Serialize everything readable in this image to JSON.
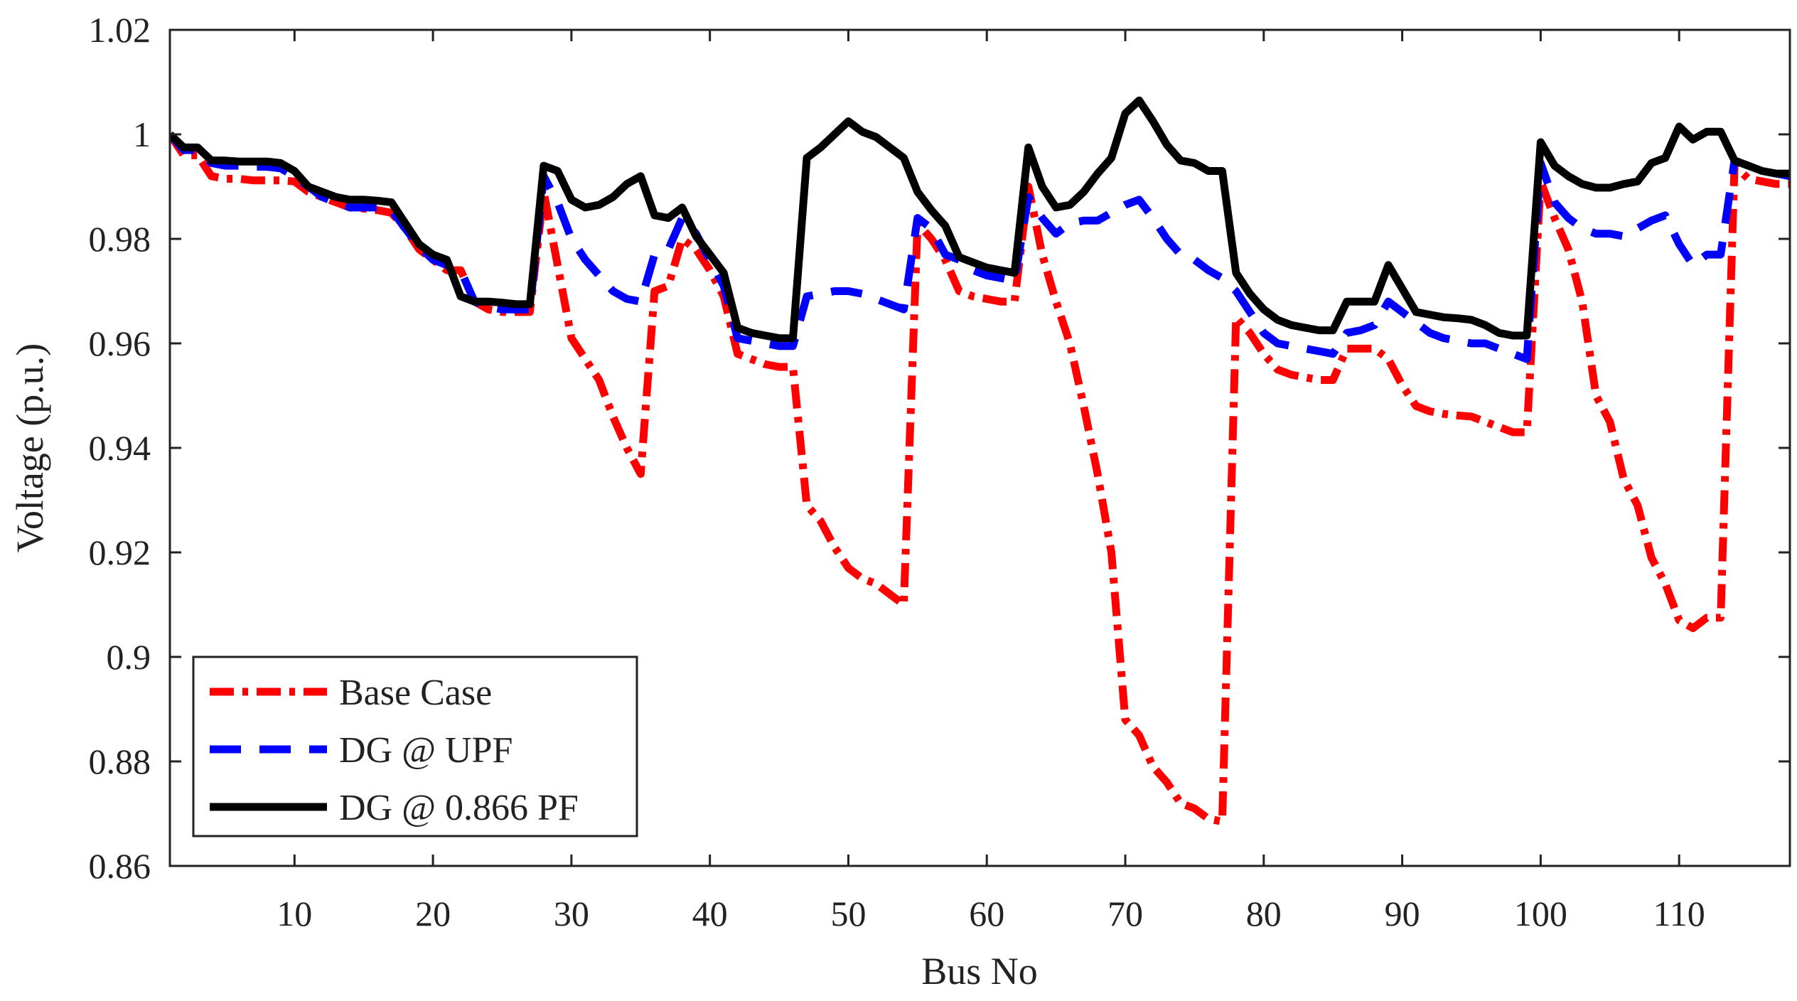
{
  "chart_data": {
    "type": "line",
    "title": "",
    "xlabel": "Bus No",
    "ylabel": "Voltage (p.u.)",
    "xlim": [
      1,
      118
    ],
    "ylim": [
      0.86,
      1.02
    ],
    "xticks": [
      10,
      20,
      30,
      40,
      50,
      60,
      70,
      80,
      90,
      100,
      110
    ],
    "yticks": [
      0.86,
      0.88,
      0.9,
      0.92,
      0.94,
      0.96,
      0.98,
      1,
      1.02
    ],
    "ytick_labels": [
      "0.86",
      "0.88",
      "0.9",
      "0.92",
      "0.94",
      "0.96",
      "0.98",
      "1",
      "1.02"
    ],
    "legend_position": "bottom-left",
    "grid": false,
    "series": [
      {
        "name": "Base Case",
        "color": "#ff0000",
        "style": "dash-dot",
        "x": [
          1,
          2,
          3,
          4,
          5,
          6,
          7,
          8,
          9,
          10,
          11,
          12,
          13,
          14,
          15,
          16,
          17,
          18,
          19,
          20,
          21,
          22,
          23,
          24,
          25,
          26,
          27,
          28,
          29,
          30,
          31,
          32,
          33,
          34,
          35,
          36,
          37,
          38,
          39,
          40,
          41,
          42,
          43,
          44,
          45,
          46,
          47,
          48,
          49,
          50,
          51,
          52,
          53,
          54,
          55,
          56,
          57,
          58,
          59,
          60,
          61,
          62,
          63,
          64,
          65,
          66,
          67,
          68,
          69,
          70,
          71,
          72,
          73,
          74,
          75,
          76,
          77,
          78,
          79,
          80,
          81,
          82,
          83,
          84,
          85,
          86,
          87,
          88,
          89,
          90,
          91,
          92,
          93,
          94,
          95,
          96,
          97,
          98,
          99,
          100,
          101,
          102,
          103,
          104,
          105,
          106,
          107,
          108,
          109,
          110,
          111,
          112,
          113,
          114,
          115,
          116,
          117,
          118
        ],
        "values": [
          1.0,
          0.996,
          0.996,
          0.992,
          0.9915,
          0.9915,
          0.9912,
          0.9912,
          0.9912,
          0.991,
          0.989,
          0.988,
          0.987,
          0.986,
          0.9858,
          0.9855,
          0.985,
          0.982,
          0.978,
          0.976,
          0.974,
          0.974,
          0.968,
          0.9665,
          0.966,
          0.966,
          0.966,
          0.989,
          0.975,
          0.961,
          0.957,
          0.953,
          0.946,
          0.94,
          0.935,
          0.97,
          0.971,
          0.98,
          0.978,
          0.974,
          0.969,
          0.958,
          0.957,
          0.956,
          0.9555,
          0.9555,
          0.929,
          0.926,
          0.921,
          0.917,
          0.915,
          0.914,
          0.912,
          0.91,
          0.983,
          0.98,
          0.976,
          0.97,
          0.969,
          0.9685,
          0.968,
          0.968,
          0.99,
          0.977,
          0.968,
          0.96,
          0.948,
          0.935,
          0.92,
          0.888,
          0.885,
          0.879,
          0.876,
          0.872,
          0.871,
          0.869,
          0.8685,
          0.965,
          0.962,
          0.958,
          0.955,
          0.954,
          0.9535,
          0.953,
          0.953,
          0.959,
          0.959,
          0.959,
          0.957,
          0.952,
          0.948,
          0.947,
          0.9465,
          0.9462,
          0.946,
          0.945,
          0.944,
          0.943,
          0.943,
          0.991,
          0.984,
          0.978,
          0.968,
          0.95,
          0.945,
          0.934,
          0.929,
          0.919,
          0.914,
          0.907,
          0.9055,
          0.9075,
          0.9075,
          0.994,
          0.9915,
          0.991,
          0.9905,
          0.9905
        ]
      },
      {
        "name": "DG @ UPF",
        "color": "#0000ff",
        "style": "dashed",
        "x": [
          1,
          2,
          3,
          4,
          5,
          6,
          7,
          8,
          9,
          10,
          11,
          12,
          13,
          14,
          15,
          16,
          17,
          18,
          19,
          20,
          21,
          22,
          23,
          24,
          25,
          26,
          27,
          28,
          29,
          30,
          31,
          32,
          33,
          34,
          35,
          36,
          37,
          38,
          39,
          40,
          41,
          42,
          43,
          44,
          45,
          46,
          47,
          48,
          49,
          50,
          51,
          52,
          53,
          54,
          55,
          56,
          57,
          58,
          59,
          60,
          61,
          62,
          63,
          64,
          65,
          66,
          67,
          68,
          69,
          70,
          71,
          72,
          73,
          74,
          75,
          76,
          77,
          78,
          79,
          80,
          81,
          82,
          83,
          84,
          85,
          86,
          87,
          88,
          89,
          90,
          91,
          92,
          93,
          94,
          95,
          96,
          97,
          98,
          99,
          100,
          101,
          102,
          103,
          104,
          105,
          106,
          107,
          108,
          109,
          110,
          111,
          112,
          113,
          114,
          115,
          116,
          117,
          118
        ],
        "values": [
          1.0,
          0.997,
          0.997,
          0.9945,
          0.994,
          0.994,
          0.9938,
          0.9938,
          0.9935,
          0.992,
          0.99,
          0.988,
          0.987,
          0.986,
          0.986,
          0.986,
          0.9855,
          0.982,
          0.9785,
          0.976,
          0.975,
          0.974,
          0.968,
          0.967,
          0.9665,
          0.9665,
          0.9665,
          0.992,
          0.987,
          0.98,
          0.976,
          0.973,
          0.97,
          0.9685,
          0.968,
          0.977,
          0.978,
          0.984,
          0.981,
          0.976,
          0.971,
          0.961,
          0.9605,
          0.96,
          0.9595,
          0.9595,
          0.969,
          0.9695,
          0.97,
          0.97,
          0.9695,
          0.9685,
          0.9675,
          0.9665,
          0.984,
          0.982,
          0.977,
          0.976,
          0.974,
          0.973,
          0.9725,
          0.972,
          0.988,
          0.984,
          0.981,
          0.983,
          0.9835,
          0.9835,
          0.985,
          0.9865,
          0.9875,
          0.984,
          0.98,
          0.977,
          0.976,
          0.974,
          0.9725,
          0.97,
          0.966,
          0.962,
          0.96,
          0.9595,
          0.959,
          0.9585,
          0.958,
          0.962,
          0.9625,
          0.9635,
          0.968,
          0.966,
          0.964,
          0.962,
          0.961,
          0.9605,
          0.96,
          0.96,
          0.959,
          0.958,
          0.957,
          0.9945,
          0.987,
          0.984,
          0.982,
          0.981,
          0.981,
          0.9805,
          0.982,
          0.9835,
          0.9845,
          0.979,
          0.975,
          0.977,
          0.977,
          0.995,
          0.994,
          0.993,
          0.9925,
          0.992
        ]
      },
      {
        "name": "DG @ 0.866 PF",
        "color": "#000000",
        "style": "solid",
        "x": [
          1,
          2,
          3,
          4,
          5,
          6,
          7,
          8,
          9,
          10,
          11,
          12,
          13,
          14,
          15,
          16,
          17,
          18,
          19,
          20,
          21,
          22,
          23,
          24,
          25,
          26,
          27,
          28,
          29,
          30,
          31,
          32,
          33,
          34,
          35,
          36,
          37,
          38,
          39,
          40,
          41,
          42,
          43,
          44,
          45,
          46,
          47,
          48,
          49,
          50,
          51,
          52,
          53,
          54,
          55,
          56,
          57,
          58,
          59,
          60,
          61,
          62,
          63,
          64,
          65,
          66,
          67,
          68,
          69,
          70,
          71,
          72,
          73,
          74,
          75,
          76,
          77,
          78,
          79,
          80,
          81,
          82,
          83,
          84,
          85,
          86,
          87,
          88,
          89,
          90,
          91,
          92,
          93,
          94,
          95,
          96,
          97,
          98,
          99,
          100,
          101,
          102,
          103,
          104,
          105,
          106,
          107,
          108,
          109,
          110,
          111,
          112,
          113,
          114,
          115,
          116,
          117,
          118
        ],
        "values": [
          1.0,
          0.9975,
          0.9975,
          0.995,
          0.995,
          0.9948,
          0.9948,
          0.9948,
          0.9945,
          0.993,
          0.99,
          0.989,
          0.988,
          0.9875,
          0.9875,
          0.9873,
          0.987,
          0.983,
          0.979,
          0.977,
          0.976,
          0.969,
          0.968,
          0.968,
          0.9678,
          0.9675,
          0.9675,
          0.994,
          0.993,
          0.9875,
          0.986,
          0.9865,
          0.988,
          0.9905,
          0.992,
          0.9845,
          0.984,
          0.986,
          0.9805,
          0.977,
          0.9735,
          0.963,
          0.962,
          0.9615,
          0.961,
          0.961,
          0.9955,
          0.9975,
          1.0,
          1.0025,
          1.0005,
          0.9995,
          0.9975,
          0.9955,
          0.989,
          0.9855,
          0.9825,
          0.9765,
          0.9755,
          0.9745,
          0.974,
          0.9735,
          0.9975,
          0.99,
          0.986,
          0.9865,
          0.989,
          0.9925,
          0.9955,
          1.004,
          1.0065,
          1.0025,
          0.998,
          0.995,
          0.9945,
          0.993,
          0.993,
          0.9735,
          0.9695,
          0.9665,
          0.9645,
          0.9635,
          0.963,
          0.9625,
          0.9625,
          0.968,
          0.968,
          0.968,
          0.975,
          0.9705,
          0.966,
          0.9655,
          0.965,
          0.9648,
          0.9645,
          0.9635,
          0.962,
          0.9615,
          0.9615,
          0.9985,
          0.994,
          0.992,
          0.9905,
          0.9898,
          0.9898,
          0.9905,
          0.991,
          0.9945,
          0.9955,
          1.0015,
          0.999,
          1.0005,
          1.0005,
          0.995,
          0.994,
          0.993,
          0.9925,
          0.9925
        ]
      }
    ]
  }
}
